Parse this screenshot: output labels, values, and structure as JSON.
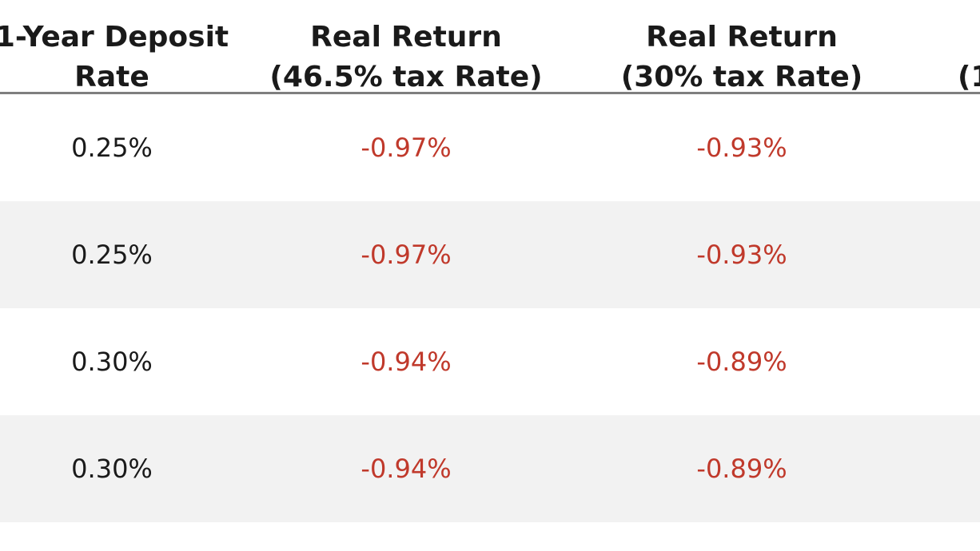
{
  "headers": [
    "1-Year Deposit\nRate",
    "Real Return\n(46.5% tax Rate)",
    "Real Return\n(30% tax Rate)",
    "\n(1"
  ],
  "rows": [
    {
      "deposit_rate": "0.25%",
      "real_return_46_5": "-0.97%",
      "real_return_30": "-0.93%"
    },
    {
      "deposit_rate": "0.25%",
      "real_return_46_5": "-0.97%",
      "real_return_30": "-0.93%"
    },
    {
      "deposit_rate": "0.30%",
      "real_return_46_5": "-0.94%",
      "real_return_30": "-0.89%"
    },
    {
      "deposit_rate": "0.30%",
      "real_return_46_5": "-0.94%",
      "real_return_30": "-0.89%"
    }
  ],
  "colors": {
    "negative": "#c0392b",
    "stripe": "#f2f2f2",
    "header_rule": "#7f7f7f"
  }
}
